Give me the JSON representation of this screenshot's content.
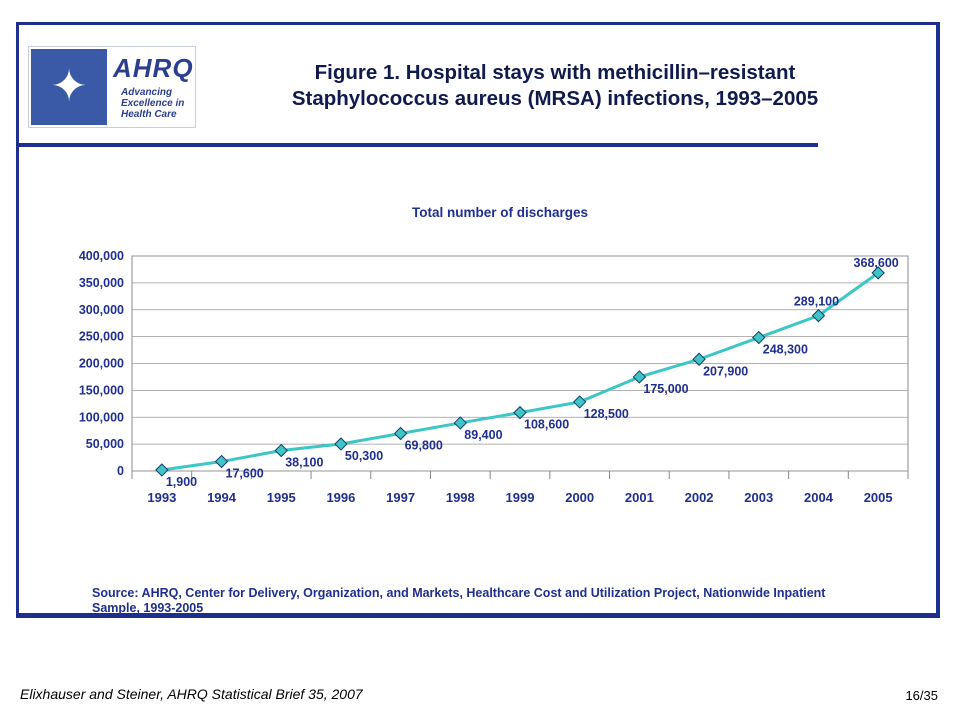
{
  "slide": {
    "title_line1": "Figure 1. Hospital stays with methicillin–resistant",
    "title_line2": "Staphylococcus aureus (MRSA) infections, 1993–2005",
    "logo_brand": "AHRQ",
    "logo_tagline": "Advancing Excellence in Health Care",
    "source": "Source: AHRQ, Center for Delivery, Organization, and Markets, Healthcare Cost and Utilization Project, Nationwide Inpatient Sample, 1993-2005",
    "footer_citation": "Elixhauser and Steiner, AHRQ Statistical Brief 35, 2007",
    "page_number": "16/35"
  },
  "chart_data": {
    "type": "line",
    "title": "Total number of discharges",
    "x": [
      "1993",
      "1994",
      "1995",
      "1996",
      "1997",
      "1998",
      "1999",
      "2000",
      "2001",
      "2002",
      "2003",
      "2004",
      "2005"
    ],
    "series": [
      {
        "values": [
          1900,
          17600,
          38100,
          50300,
          69800,
          89400,
          108600,
          128500,
          175000,
          207900,
          248300,
          289100,
          368600
        ]
      }
    ],
    "data_labels": [
      "1,900",
      "17,600",
      "38,100",
      "50,300",
      "69,800",
      "89,400",
      "108,600",
      "128,500",
      "175,000",
      "207,900",
      "248,300",
      "289,100",
      "368,600"
    ],
    "y_ticks": [
      0,
      50000,
      100000,
      150000,
      200000,
      250000,
      300000,
      350000,
      400000
    ],
    "y_tick_labels": [
      "0",
      "50,000",
      "100,000",
      "150,000",
      "200,000",
      "250,000",
      "300,000",
      "350,000",
      "400,000"
    ],
    "ylim": [
      0,
      400000
    ],
    "grid": true,
    "legend": "none",
    "colors": {
      "line": "#3cc6c6",
      "marker": "#3cc6c6",
      "marker_stroke": "#1a3a6a",
      "grid": "#999999",
      "text": "#1f2f8f"
    }
  }
}
